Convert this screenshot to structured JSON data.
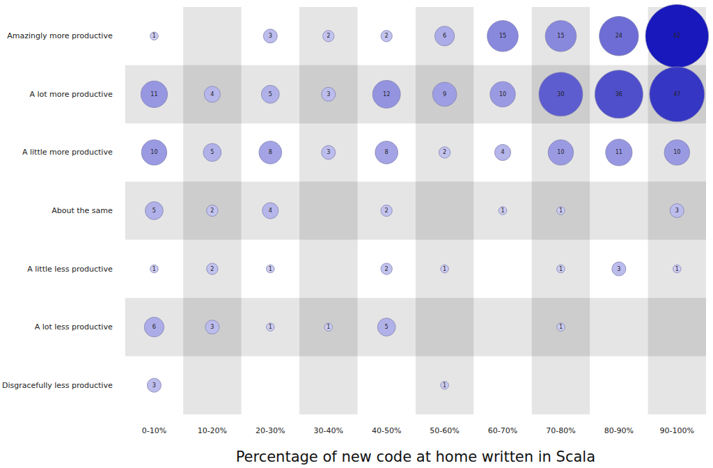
{
  "chart_data": {
    "type": "bubble",
    "x_label": "Percentage of new code at home written in Scala",
    "categories": [
      "0-10%",
      "10-20%",
      "20-30%",
      "30-40%",
      "40-50%",
      "50-60%",
      "60-70%",
      "70-80%",
      "80-90%",
      "90-100%"
    ],
    "rows": [
      "Amazingly more productive",
      "A lot more productive",
      "A little more productive",
      "About the same",
      "A little less productive",
      "A lot less productive",
      "Disgracefully less productive"
    ],
    "values": [
      [
        1,
        null,
        3,
        2,
        2,
        6,
        15,
        15,
        24,
        62
      ],
      [
        11,
        4,
        5,
        3,
        12,
        9,
        10,
        30,
        36,
        47
      ],
      [
        10,
        5,
        8,
        3,
        8,
        2,
        4,
        10,
        11,
        10
      ],
      [
        5,
        2,
        4,
        null,
        2,
        null,
        1,
        1,
        null,
        3
      ],
      [
        1,
        2,
        1,
        null,
        2,
        1,
        null,
        1,
        3,
        1
      ],
      [
        6,
        3,
        1,
        1,
        5,
        null,
        null,
        1,
        null,
        null
      ],
      [
        3,
        null,
        null,
        null,
        null,
        1,
        null,
        null,
        null,
        null
      ]
    ],
    "color": [
      "#dcdcf6",
      "#1818bc"
    ],
    "data_labels": true,
    "grid": false
  }
}
